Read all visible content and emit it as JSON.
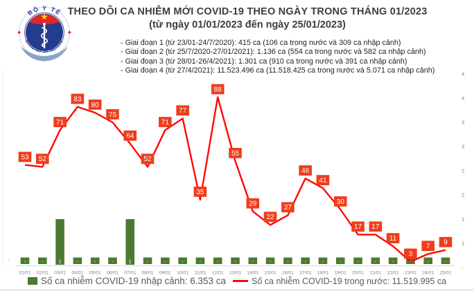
{
  "header": {
    "title": "THEO DÕI CA NHIỄM MỚI COVID-19 THEO NGÀY TRONG THÁNG 01/2023",
    "subtitle": "(từ ngày 01/01/2023 đến ngày 25/01/2023)"
  },
  "logo": {
    "top_text": "BỘ Y TẾ",
    "bottom_text": "MINISTRY OF HEALTH"
  },
  "phases": [
    "- Giai đoạn 1 (từ 23/01-24/7/2020): 415 ca (106 ca trong nước và 309 ca nhập cảnh)",
    "- Giai đoạn 2 (từ 25/7/2020-27/01/2021): 1.136 ca (554 ca trong nước và 582 ca nhập cảnh)",
    "- Giai đoạn 3 (từ 28/01-26/4/2021): 1.301 ca (910 ca trong nước và 391 ca nhập cảnh)",
    "- Giai đoạn 4 (từ 27/4/2021): 11.523.496 ca (11.518.425 ca trong nước và 5.071 ca nhập cảnh)"
  ],
  "chart_data": {
    "type": "line+bar combo",
    "categories": [
      "01/01",
      "02/01",
      "03/01",
      "04/01",
      "05/01",
      "06/01",
      "07/01",
      "08/01",
      "09/01",
      "10/01",
      "11/01",
      "12/01",
      "13/01",
      "14/01",
      "15/01",
      "16/01",
      "17/01",
      "18/01",
      "19/01",
      "20/01",
      "21/01",
      "22/01",
      "23/01",
      "24/01",
      "25/01"
    ],
    "series": [
      {
        "name": "Số ca nhiễm COVID-19 trong nước",
        "type": "line",
        "color": "#fe0800",
        "label_box_color": "#ef3d1c",
        "values": [
          53,
          52,
          71,
          83,
          80,
          75,
          64,
          52,
          71,
          77,
          35,
          88,
          55,
          29,
          22,
          27,
          46,
          41,
          30,
          17,
          17,
          11,
          3,
          7,
          9
        ]
      },
      {
        "name": "Số ca nhiễm COVID-19 nhập cảnh",
        "type": "bar",
        "color": "#4d7a31",
        "zero_label": "-",
        "values": [
          0,
          0,
          1,
          0,
          0,
          0,
          1,
          0,
          0,
          0,
          0,
          0,
          0,
          0,
          0,
          0,
          0,
          0,
          0,
          0,
          0,
          0,
          0,
          0,
          0
        ]
      }
    ],
    "left_axis": {
      "range": [
        0,
        100
      ],
      "zero_label": "-"
    },
    "right_axis": {
      "range": [
        0,
        4
      ],
      "tick_labels_top_down": [
        "4",
        "4",
        "3",
        "3",
        "2",
        "2",
        "1",
        "1",
        "-"
      ]
    },
    "grid": "off",
    "legend_position": "bottom"
  },
  "legend": {
    "imported": "Số ca nhiễm COVID-19 nhập cảnh: 6.353 ca",
    "domestic": "Số ca nhiễm COVID-19 trong nước: 11.519.995 ca"
  }
}
